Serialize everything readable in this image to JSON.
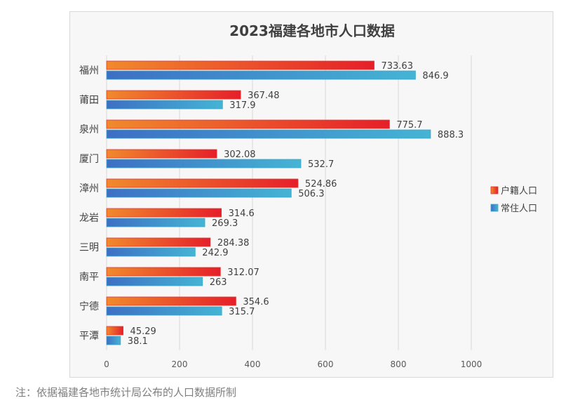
{
  "chart_data": {
    "type": "bar",
    "orientation": "horizontal",
    "title": "2023福建各地市人口数据",
    "categories": [
      "福州",
      "莆田",
      "泉州",
      "厦门",
      "漳州",
      "龙岩",
      "三明",
      "南平",
      "宁德",
      "平潭"
    ],
    "series": [
      {
        "name": "户籍人口",
        "color": "#e8322b",
        "values": [
          733.63,
          367.48,
          775.7,
          302.08,
          524.86,
          314.6,
          284.38,
          312.07,
          354.6,
          45.29
        ]
      },
      {
        "name": "常住人口",
        "color": "#3aa8c9",
        "values": [
          846.9,
          317.9,
          888.3,
          532.7,
          506.3,
          269.3,
          242.9,
          263,
          315.7,
          38.1
        ]
      }
    ],
    "value_labels": [
      [
        "733.63",
        "367.48",
        "775.7",
        "302.08",
        "524.86",
        "314.6",
        "284.38",
        "312.07",
        "354.6",
        "45.29"
      ],
      [
        "846.9",
        "317.9",
        "888.3",
        "532.7",
        "506.3",
        "269.3",
        "242.9",
        "263",
        "315.7",
        "38.1"
      ]
    ],
    "xlim": [
      0,
      1000
    ],
    "xticks": [
      "0",
      "200",
      "400",
      "600",
      "800",
      "1000"
    ],
    "grid": true,
    "legend_position": "right"
  },
  "footnote": "注：依据福建各地市统计局公布的人口数据所制"
}
